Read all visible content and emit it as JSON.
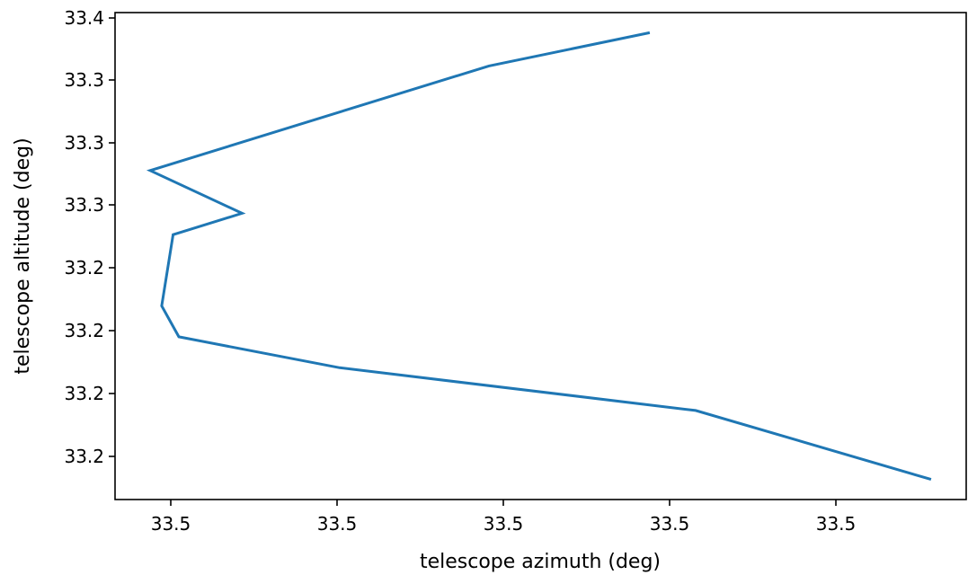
{
  "chart_data": {
    "type": "line",
    "xlabel": "telescope azimuth (deg)",
    "ylabel": "telescope altitude (deg)",
    "x_tick_labels": [
      "33.5",
      "33.5",
      "33.5",
      "33.5",
      "33.5"
    ],
    "y_tick_labels": [
      "33.2",
      "33.2",
      "33.2",
      "33.2",
      "33.3",
      "33.3",
      "33.3",
      "33.4"
    ],
    "grid": false,
    "series": [
      {
        "color": "#1f77b4",
        "x": [
          33.4934,
          33.4893,
          33.4831,
          33.4803,
          33.48,
          33.4802,
          33.4814,
          33.4798,
          33.4857,
          33.4885
        ],
        "y": [
          33.2365,
          33.251,
          33.26,
          33.2665,
          33.273,
          33.288,
          33.2925,
          33.3015,
          33.3235,
          33.3305
        ]
      }
    ]
  }
}
